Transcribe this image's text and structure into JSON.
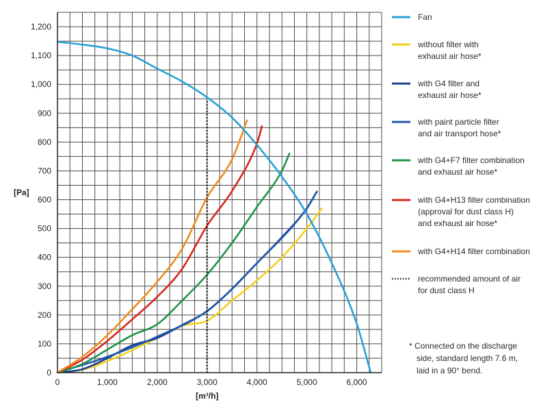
{
  "chart_data": {
    "type": "line",
    "title": "",
    "xlabel": "[m³/h]",
    "ylabel": "[Pa]",
    "xlim": [
      0,
      6500
    ],
    "ylim": [
      0,
      1250
    ],
    "grid": true,
    "x_grid_step": 250,
    "y_grid_step": 50,
    "x_ticks": [
      0,
      1000,
      2000,
      3000,
      4000,
      5000,
      6000
    ],
    "x_tick_labels": [
      "0",
      "1,000",
      "2,000",
      "3,000",
      "4,000",
      "5,000",
      "6,000"
    ],
    "y_ticks": [
      0,
      100,
      200,
      300,
      400,
      500,
      600,
      700,
      800,
      900,
      1000,
      1100,
      1200
    ],
    "y_tick_labels": [
      "0",
      "100",
      "200",
      "300",
      "400",
      "500",
      "600",
      "700",
      "800",
      "900",
      "1,000",
      "1,100",
      "1,200"
    ],
    "series": [
      {
        "name": "Fan",
        "legend": [
          "Fan"
        ],
        "color": "#2a9fd6",
        "style": "solid",
        "x": [
          0,
          500,
          1000,
          1500,
          2000,
          2500,
          3000,
          3500,
          4000,
          4500,
          5000,
          5500,
          6000,
          6280
        ],
        "y": [
          1148,
          1138,
          1125,
          1100,
          1055,
          1010,
          955,
          885,
          790,
          680,
          550,
          380,
          170,
          0
        ]
      },
      {
        "name": "without filter with exhaust air hose*",
        "legend": [
          "without filter with",
          "exhaust air hose*"
        ],
        "color": "#f2cf1d",
        "style": "solid",
        "x": [
          0,
          500,
          1000,
          1500,
          2000,
          2500,
          3000,
          3500,
          4000,
          4500,
          5000,
          5300
        ],
        "y": [
          0,
          10,
          40,
          78,
          120,
          163,
          180,
          250,
          320,
          400,
          500,
          570
        ]
      },
      {
        "name": "with G4 filter and exhaust air hose*",
        "legend": [
          "with G4 filter and",
          "exhaust air hose*"
        ],
        "color": "#1b3f8f",
        "style": "solid",
        "x": [
          0,
          500,
          1000,
          1500,
          2000,
          2500,
          3000,
          3500,
          4000,
          4500,
          5000,
          5200
        ],
        "y": [
          0,
          12,
          50,
          95,
          120,
          165,
          213,
          290,
          380,
          470,
          570,
          628
        ]
      },
      {
        "name": "with paint particle filter and air transport hose*",
        "legend": [
          "with paint particle filter",
          "and air transport hose*"
        ],
        "color": "#1f57a8",
        "style": "solid",
        "x": [
          0,
          1000,
          2000,
          3000,
          4000,
          5000,
          5200
        ],
        "y": [
          0,
          55,
          125,
          214,
          380,
          570,
          628
        ]
      },
      {
        "name": "with G4+F7 filter combination and exhaust air hose*",
        "legend": [
          "with G4+F7 filter combination",
          "and exhaust air hose*"
        ],
        "color": "#1f9246",
        "style": "solid",
        "x": [
          0,
          500,
          1000,
          1500,
          2000,
          2500,
          3000,
          3500,
          4000,
          4500,
          4650
        ],
        "y": [
          0,
          30,
          80,
          130,
          168,
          250,
          340,
          450,
          575,
          700,
          760
        ]
      },
      {
        "name": "with G4+H13 filter combination (approval for dust class H) and exhaust air hose*",
        "legend": [
          "with G4+H13 filter combination",
          "(approval for dust class H)",
          "and exhaust air hose*"
        ],
        "color": "#d7261e",
        "style": "solid",
        "x": [
          0,
          500,
          1000,
          1500,
          2000,
          2500,
          3000,
          3500,
          4000,
          4100
        ],
        "y": [
          0,
          45,
          110,
          185,
          263,
          360,
          510,
          630,
          795,
          855
        ]
      },
      {
        "name": "with G4+H14 filter combination",
        "legend": [
          "with G4+H14 filter combination"
        ],
        "color": "#ef8b1e",
        "style": "solid",
        "x": [
          0,
          500,
          1000,
          1500,
          2000,
          2500,
          3000,
          3500,
          3800
        ],
        "y": [
          0,
          55,
          130,
          220,
          315,
          430,
          608,
          740,
          875
        ]
      },
      {
        "name": "recommended amount of air for dust class H",
        "legend": [
          "recommended amount of air",
          "for dust class H"
        ],
        "color": "#111111",
        "style": "dotted",
        "x": [
          3000,
          3000
        ],
        "y": [
          0,
          950
        ]
      }
    ],
    "footnote": [
      "* Connected on the discharge",
      "side, standard length 7.6 m,",
      "laid in a 90° bend."
    ]
  }
}
